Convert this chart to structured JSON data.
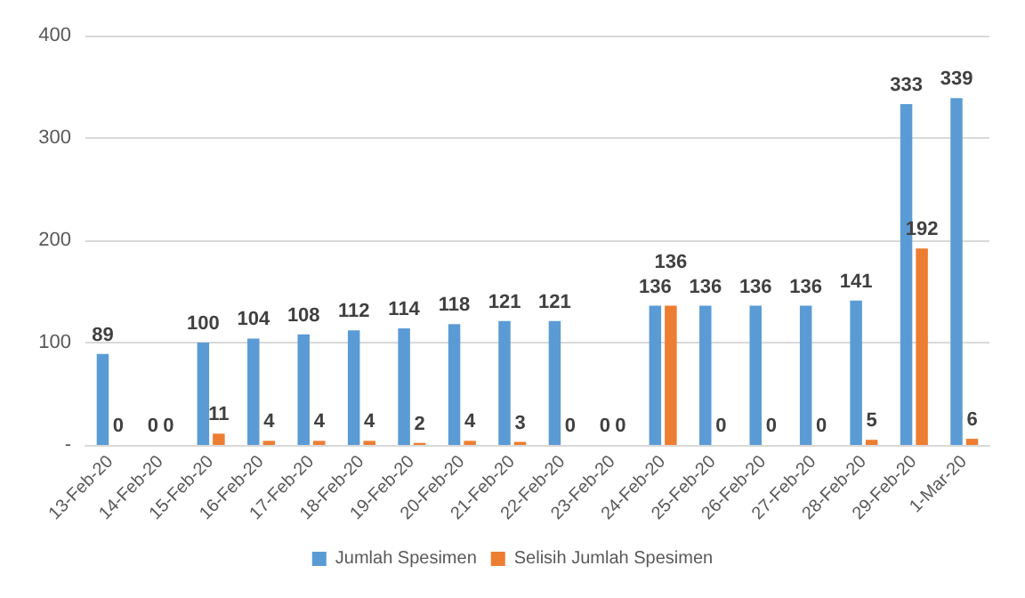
{
  "chart_data": {
    "type": "bar",
    "categories": [
      "13-Feb-20",
      "14-Feb-20",
      "15-Feb-20",
      "16-Feb-20",
      "17-Feb-20",
      "18-Feb-20",
      "19-Feb-20",
      "20-Feb-20",
      "21-Feb-20",
      "22-Feb-20",
      "23-Feb-20",
      "24-Feb-20",
      "25-Feb-20",
      "26-Feb-20",
      "27-Feb-20",
      "28-Feb-20",
      "29-Feb-20",
      "1-Mar-20"
    ],
    "series": [
      {
        "name": "Jumlah Spesimen",
        "color": "#5b9bd5",
        "values": [
          89,
          0,
          100,
          104,
          108,
          112,
          114,
          118,
          121,
          121,
          0,
          136,
          136,
          136,
          136,
          141,
          333,
          339
        ]
      },
      {
        "name": "Selisih Jumlah Spesimen",
        "color": "#ed7d31",
        "values": [
          0,
          0,
          11,
          4,
          4,
          4,
          2,
          4,
          3,
          0,
          0,
          136,
          0,
          0,
          0,
          5,
          192,
          6
        ]
      }
    ],
    "ylim": [
      0,
      400
    ],
    "yticks": [
      {
        "value": 0,
        "label": "-"
      },
      100,
      200,
      300,
      400
    ],
    "grid": "y",
    "legend": "bottom",
    "data_labels": true
  }
}
